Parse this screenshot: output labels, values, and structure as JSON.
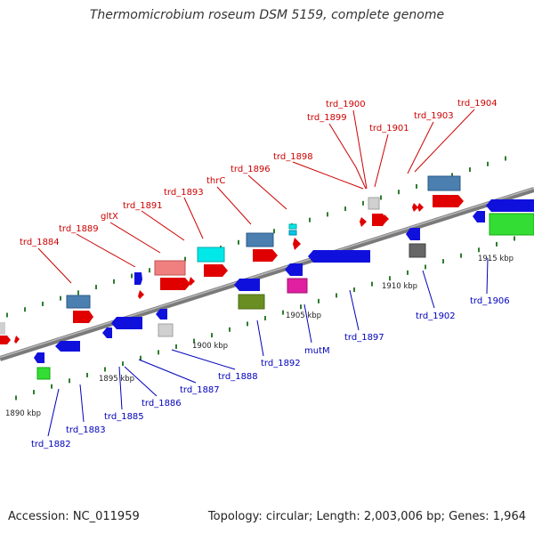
{
  "title": "Thermomicrobium roseum DSM 5159, complete genome",
  "footer": {
    "accession": "Accession: NC_011959",
    "summary": "Topology: circular; Length: 2,003,006 bp; Genes: 1,964"
  },
  "colors": {
    "top_label": "#cc0000",
    "bottom_label": "#0000bb",
    "backbone": "#8a8a8a",
    "tick": "#2e7d2e"
  },
  "scale_labels": [
    "1890 kbp",
    "1895 kbp",
    "1900 kbp",
    "1905 kbp",
    "1910 kbp",
    "1915 kbp"
  ],
  "top_labels": [
    "trd_1884",
    "trd_1889",
    "gltX",
    "trd_1891",
    "trd_1893",
    "thrC",
    "trd_1896",
    "trd_1898",
    "trd_1899",
    "trd_1900",
    "trd_1901",
    "trd_1903",
    "trd_1904"
  ],
  "bottom_labels": [
    "trd_1882",
    "trd_1883",
    "trd_1885",
    "trd_1886",
    "trd_1887",
    "trd_1888",
    "trd_1892",
    "mutM",
    "trd_1897",
    "trd_1902",
    "trd_1906"
  ]
}
